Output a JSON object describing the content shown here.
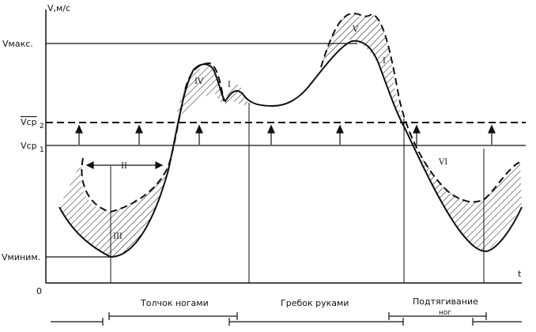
{
  "axes": {
    "y_label": "V,м/с",
    "x_label": "t",
    "origin_label": "0"
  },
  "levels": {
    "v_max": "Vмакс.",
    "v_avg2": "Vср",
    "v_avg2_sub": "2",
    "v_avg1": "Vср",
    "v_avg1_sub": "1",
    "v_min": "Vминим."
  },
  "zones": {
    "z1": "I",
    "z2": "I",
    "z3": "III",
    "z4": "IV",
    "z5": "V",
    "z6": "VI",
    "span_label": "II"
  },
  "phases": [
    {
      "label": "Толчок ногами"
    },
    {
      "label": "Гребок руками"
    },
    {
      "label": "Подтягивание"
    },
    {
      "label": "ног"
    }
  ],
  "colors": {
    "ink": "#111111",
    "hatch": "#222222",
    "background": "#ffffff"
  }
}
